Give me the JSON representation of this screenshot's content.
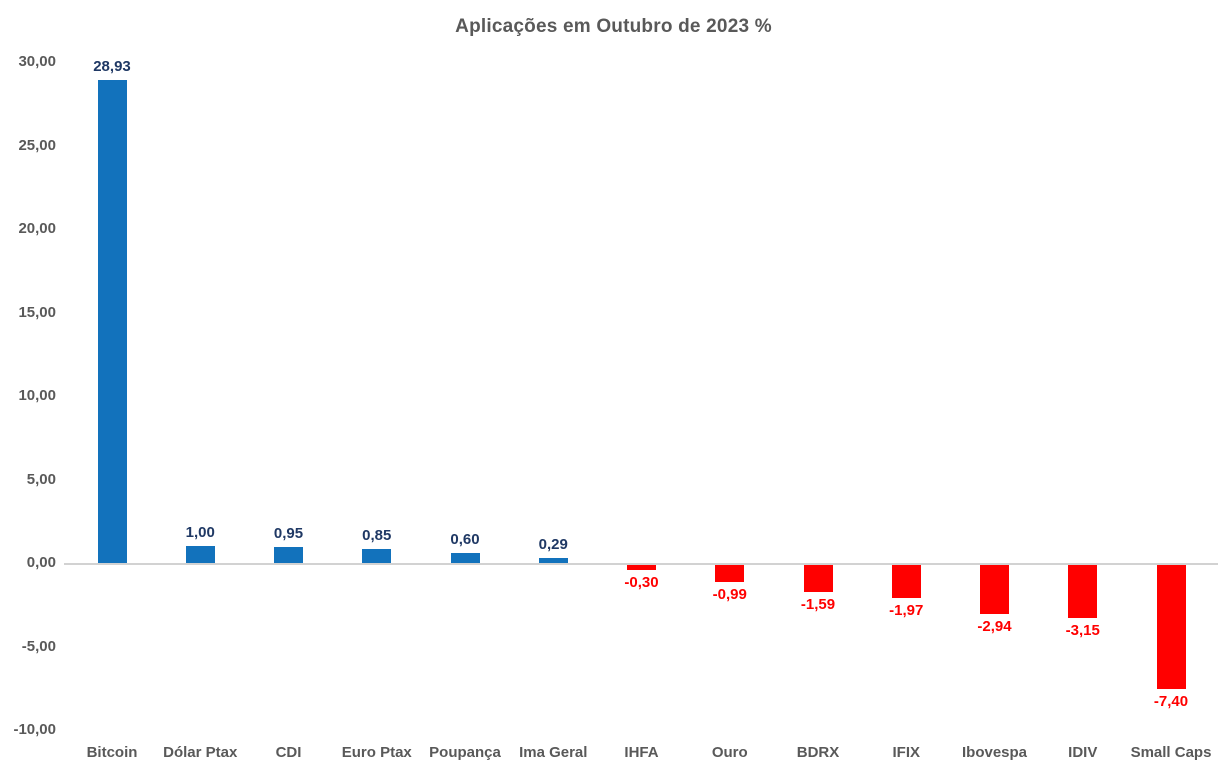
{
  "chart_data": {
    "type": "bar",
    "title": "Aplicações em Outubro de 2023 %",
    "categories": [
      "Bitcoin",
      "Dólar Ptax",
      "CDI",
      "Euro Ptax",
      "Poupança",
      "Ima Geral",
      "IHFA",
      "Ouro",
      "BDRX",
      "IFIX",
      "Ibovespa",
      "IDIV",
      "Small Caps"
    ],
    "values": [
      28.93,
      1.0,
      0.95,
      0.85,
      0.6,
      0.29,
      -0.3,
      -0.99,
      -1.59,
      -1.97,
      -2.94,
      -3.15,
      -7.4
    ],
    "value_labels": [
      "28,93",
      "1,00",
      "0,95",
      "0,85",
      "0,60",
      "0,29",
      "-0,30",
      "-0,99",
      "-1,59",
      "-1,97",
      "-2,94",
      "-3,15",
      "-7,40"
    ],
    "xlabel": "",
    "ylabel": "",
    "ylim": [
      -10,
      30
    ],
    "y_ticks": [
      {
        "value": 30,
        "label": "30,00"
      },
      {
        "value": 25,
        "label": "25,00"
      },
      {
        "value": 20,
        "label": "20,00"
      },
      {
        "value": 15,
        "label": "15,00"
      },
      {
        "value": 10,
        "label": "10,00"
      },
      {
        "value": 5,
        "label": "5,00"
      },
      {
        "value": 0,
        "label": "0,00"
      },
      {
        "value": -5,
        "label": "-5,00"
      },
      {
        "value": -10,
        "label": "-10,00"
      }
    ],
    "grid": false,
    "legend": false,
    "colors": {
      "positive_bar": "#1272BC",
      "negative_bar": "#FF0000",
      "positive_label": "#1F3864",
      "negative_label": "#FF0000",
      "axis_text": "#595959",
      "title_text": "#595959",
      "axis_line": "#D2D2D2",
      "background": "#FFFFFF"
    }
  }
}
